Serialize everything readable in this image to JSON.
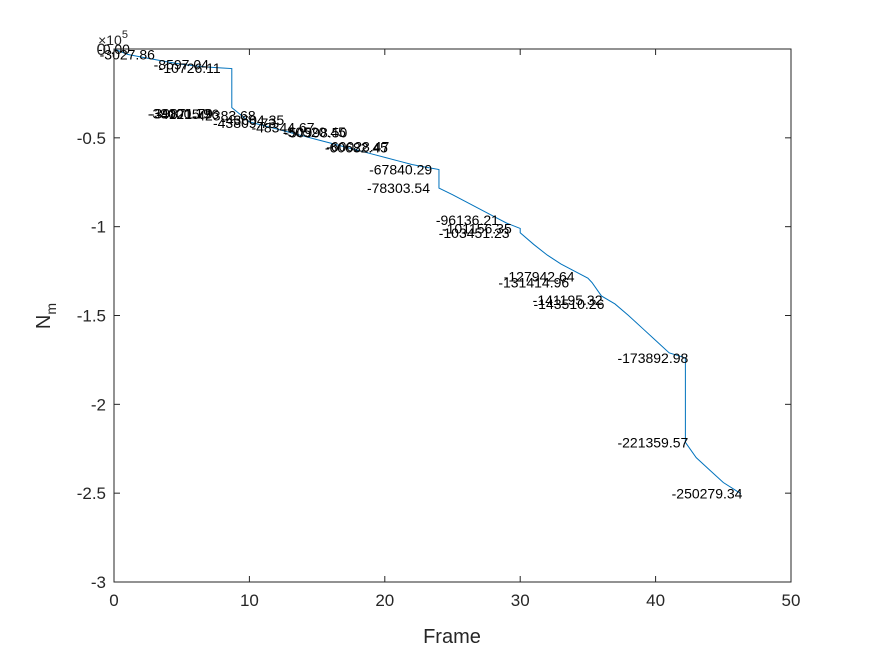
{
  "chart_data": {
    "type": "line",
    "xlabel": "Frame",
    "ylabel": "N",
    "ylabel_subscript": "m",
    "xlim": [
      0,
      50
    ],
    "ylim": [
      -3,
      0
    ],
    "x_ticks": [
      0,
      10,
      20,
      30,
      40,
      50
    ],
    "x_tick_labels": [
      "0",
      "10",
      "20",
      "30",
      "40",
      "50"
    ],
    "y_ticks": [
      0,
      -0.5,
      -1,
      -1.5,
      -2,
      -2.5,
      -3
    ],
    "y_tick_labels": [
      "0",
      "-0.5",
      "-1",
      "-1.5",
      "-2",
      "-2.5",
      "-3"
    ],
    "y_exponent_label": "×10",
    "y_exponent_power": "5",
    "y_scale_factor": 100000,
    "grid": false,
    "line_color": "#0072BD",
    "series": [
      {
        "x": [
          0,
          1,
          2,
          3,
          4,
          5,
          6,
          7,
          8,
          8.7,
          8.7,
          10,
          11,
          12,
          13,
          14,
          15,
          16,
          17,
          18,
          19,
          20,
          21,
          22,
          23,
          24,
          24,
          25,
          26,
          27,
          28,
          29,
          30,
          30,
          31,
          32,
          33,
          34,
          35,
          35.3,
          36,
          37,
          38,
          39,
          40,
          41,
          42.2,
          42.2,
          43,
          44,
          45,
          46.3
        ],
        "y": [
          0,
          -3027.86,
          -4500,
          -5900,
          -7300,
          -8597.04,
          -9500,
          -10200,
          -10726.11,
          -11000,
          -33000,
          -41000,
          -43000,
          -45000,
          -47000,
          -49000,
          -51000,
          -53000,
          -55000,
          -57000,
          -59000,
          -61000,
          -63000,
          -65000,
          -66500,
          -67840.29,
          -78303.54,
          -82000,
          -86000,
          -90000,
          -94000,
          -98000,
          -101000,
          -103451.23,
          -110000,
          -116000,
          -121000,
          -125000,
          -129000,
          -131414.96,
          -139000,
          -143510.26,
          -150000,
          -157000,
          -164000,
          -171000,
          -173892.98,
          -221359.57,
          -230000,
          -237000,
          -244000,
          -250279.34
        ]
      }
    ],
    "annotations": [
      {
        "text": "-0.00",
        "x": 0,
        "y": 0
      },
      {
        "text": "-3027.86",
        "x": 0.98,
        "y": -3027.86
      },
      {
        "text": "-8597.04",
        "x": 4.97,
        "y": -8597.04
      },
      {
        "text": "-10726.11",
        "x": 5.59,
        "y": -10726.11
      },
      {
        "text": "-39000.19",
        "x": 4.83,
        "y": -36400
      },
      {
        "text": "-39871.79",
        "x": 4.97,
        "y": -36400
      },
      {
        "text": "-41215.76",
        "x": 5.44,
        "y": -36700
      },
      {
        "text": "-42383.68",
        "x": 8.13,
        "y": -37500
      },
      {
        "text": "-43604.35",
        "x": 10.24,
        "y": -40000
      },
      {
        "text": "-43809.73",
        "x": 9.64,
        "y": -41600
      },
      {
        "text": "-48344.67",
        "x": 12.48,
        "y": -44100
      },
      {
        "text": "-50520.45",
        "x": 14.8,
        "y": -46600
      },
      {
        "text": "-50998.50",
        "x": 14.9,
        "y": -46900
      },
      {
        "text": "-60028.47",
        "x": 18.0,
        "y": -55000
      },
      {
        "text": "-60682.45",
        "x": 17.9,
        "y": -55400
      },
      {
        "text": "-67840.29",
        "x": 21.17,
        "y": -67840.29
      },
      {
        "text": "-78303.54",
        "x": 21.01,
        "y": -78303.54
      },
      {
        "text": "-96136.21",
        "x": 26.1,
        "y": -96136.21
      },
      {
        "text": "-101156.35",
        "x": 26.8,
        "y": -101156.35
      },
      {
        "text": "-103451.23",
        "x": 26.6,
        "y": -103451.23
      },
      {
        "text": "-127942.64",
        "x": 31.4,
        "y": -127942.64
      },
      {
        "text": "-131414.96",
        "x": 31.0,
        "y": -131414.96
      },
      {
        "text": "-141195.32",
        "x": 33.5,
        "y": -141195.32
      },
      {
        "text": "-143510.26",
        "x": 33.6,
        "y": -143510.26
      },
      {
        "text": "-173892.98",
        "x": 39.8,
        "y": -173892.98
      },
      {
        "text": "-221359.57",
        "x": 39.8,
        "y": -221359.57
      },
      {
        "text": "-250279.34",
        "x": 43.8,
        "y": -250279.34
      }
    ]
  }
}
